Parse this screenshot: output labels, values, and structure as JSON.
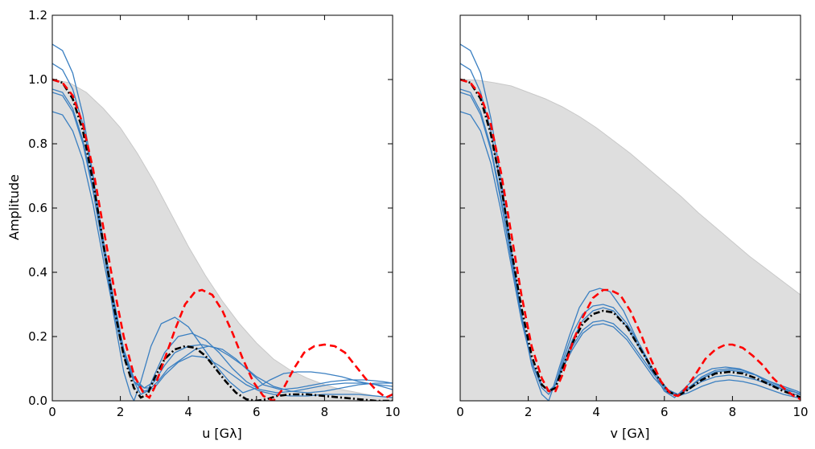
{
  "chart_data": [
    {
      "type": "line",
      "xlabel": "u [Gλ]",
      "ylabel": "Amplitude",
      "xlim": [
        0,
        10
      ],
      "ylim": [
        0,
        1.2
      ],
      "xticks": [
        "0",
        "2",
        "4",
        "6",
        "8",
        "10"
      ],
      "yticks": [
        "0.0",
        "0.2",
        "0.4",
        "0.6",
        "0.8",
        "1.0",
        "1.2"
      ],
      "grid": false,
      "envelope": {
        "x": [
          0,
          0.5,
          1,
          1.5,
          2,
          2.5,
          3,
          3.5,
          4,
          4.5,
          5,
          5.5,
          6,
          6.5,
          7,
          7.5,
          8,
          8.5,
          9,
          9.5,
          10
        ],
        "y": [
          1.0,
          0.99,
          0.96,
          0.91,
          0.85,
          0.77,
          0.68,
          0.58,
          0.48,
          0.39,
          0.31,
          0.24,
          0.18,
          0.13,
          0.095,
          0.07,
          0.05,
          0.035,
          0.025,
          0.015,
          0.01
        ]
      },
      "blue_curves": [
        {
          "x": [
            0,
            0.3,
            0.6,
            0.9,
            1.2,
            1.5,
            1.8,
            2.1,
            2.3,
            2.4,
            2.6,
            2.9,
            3.2,
            3.6,
            4.0,
            4.4,
            4.8,
            5.2,
            5.6,
            6.0,
            6.4,
            6.8,
            7.2,
            7.6,
            8.0,
            8.5,
            9.0,
            9.5,
            10
          ],
          "y": [
            1.11,
            1.09,
            1.02,
            0.89,
            0.7,
            0.48,
            0.27,
            0.09,
            0.02,
            0.0,
            0.06,
            0.17,
            0.24,
            0.26,
            0.23,
            0.17,
            0.11,
            0.06,
            0.025,
            0.04,
            0.065,
            0.085,
            0.09,
            0.09,
            0.085,
            0.075,
            0.06,
            0.05,
            0.035
          ]
        },
        {
          "x": [
            0,
            0.3,
            0.6,
            0.9,
            1.2,
            1.5,
            1.8,
            2.1,
            2.4,
            2.6,
            2.8,
            3.0,
            3.3,
            3.7,
            4.1,
            4.5,
            4.9,
            5.3,
            5.7,
            6.1,
            6.6,
            7.1,
            7.6,
            8.1,
            8.6,
            9.1,
            9.6,
            10
          ],
          "y": [
            1.05,
            1.03,
            0.97,
            0.86,
            0.69,
            0.5,
            0.32,
            0.16,
            0.06,
            0.02,
            0.03,
            0.08,
            0.15,
            0.2,
            0.21,
            0.19,
            0.15,
            0.1,
            0.06,
            0.035,
            0.025,
            0.03,
            0.04,
            0.05,
            0.055,
            0.055,
            0.05,
            0.045
          ]
        },
        {
          "x": [
            0,
            0.3,
            0.6,
            0.9,
            1.2,
            1.5,
            1.8,
            2.1,
            2.4,
            2.7,
            3.0,
            3.3,
            3.6,
            4.0,
            4.4,
            4.8,
            5.2,
            5.6,
            6.0,
            6.5,
            7.0,
            7.5,
            8.0,
            8.5,
            9.0,
            9.5,
            10
          ],
          "y": [
            0.97,
            0.96,
            0.91,
            0.81,
            0.66,
            0.48,
            0.31,
            0.16,
            0.07,
            0.04,
            0.06,
            0.11,
            0.15,
            0.17,
            0.175,
            0.165,
            0.14,
            0.11,
            0.075,
            0.045,
            0.03,
            0.025,
            0.03,
            0.04,
            0.05,
            0.055,
            0.055
          ]
        },
        {
          "x": [
            0,
            0.3,
            0.6,
            0.9,
            1.2,
            1.5,
            1.8,
            2.1,
            2.4,
            2.7,
            2.9,
            3.1,
            3.4,
            3.8,
            4.2,
            4.6,
            5.0,
            5.4,
            5.8,
            6.2,
            6.7,
            7.2,
            7.7,
            8.2,
            8.7,
            9.2,
            9.7,
            10
          ],
          "y": [
            0.96,
            0.95,
            0.9,
            0.8,
            0.65,
            0.47,
            0.3,
            0.15,
            0.06,
            0.04,
            0.04,
            0.06,
            0.1,
            0.13,
            0.16,
            0.17,
            0.16,
            0.13,
            0.09,
            0.05,
            0.035,
            0.04,
            0.05,
            0.06,
            0.065,
            0.065,
            0.06,
            0.055
          ]
        },
        {
          "x": [
            0,
            0.3,
            0.6,
            0.9,
            1.2,
            1.5,
            1.8,
            2.1,
            2.4,
            2.7,
            3.0,
            3.3,
            3.7,
            4.1,
            4.5,
            4.9,
            5.3,
            5.7,
            6.1,
            6.5,
            7.0,
            7.5,
            8.0,
            8.5,
            9.0,
            9.5,
            10
          ],
          "y": [
            0.9,
            0.89,
            0.84,
            0.75,
            0.61,
            0.44,
            0.28,
            0.14,
            0.06,
            0.03,
            0.04,
            0.08,
            0.12,
            0.14,
            0.135,
            0.11,
            0.08,
            0.05,
            0.03,
            0.02,
            0.015,
            0.015,
            0.02,
            0.02,
            0.02,
            0.015,
            0.01
          ]
        }
      ],
      "red_dashed": {
        "x": [
          0,
          0.3,
          0.6,
          0.9,
          1.2,
          1.5,
          1.8,
          2.1,
          2.4,
          2.7,
          2.85,
          3.0,
          3.3,
          3.6,
          3.9,
          4.2,
          4.4,
          4.7,
          5.0,
          5.3,
          5.6,
          5.9,
          6.2,
          6.5,
          6.8,
          7.1,
          7.4,
          7.7,
          8.0,
          8.3,
          8.6,
          8.9,
          9.2,
          9.5,
          9.8,
          10
        ],
        "y": [
          1.0,
          0.99,
          0.95,
          0.86,
          0.72,
          0.54,
          0.36,
          0.2,
          0.08,
          0.02,
          0.01,
          0.04,
          0.13,
          0.22,
          0.3,
          0.34,
          0.345,
          0.33,
          0.28,
          0.21,
          0.13,
          0.06,
          0.015,
          0.0,
          0.04,
          0.1,
          0.15,
          0.17,
          0.175,
          0.17,
          0.15,
          0.11,
          0.07,
          0.035,
          0.01,
          0.02
        ]
      },
      "black_dashdot": {
        "x": [
          0,
          0.3,
          0.6,
          0.9,
          1.2,
          1.5,
          1.8,
          2.1,
          2.4,
          2.6,
          2.8,
          3.0,
          3.3,
          3.6,
          3.9,
          4.2,
          4.5,
          4.8,
          5.1,
          5.4,
          5.7,
          6.0,
          6.3,
          6.6,
          7.0,
          7.5,
          8.0,
          8.5,
          9.0,
          9.5,
          10
        ],
        "y": [
          1.0,
          0.99,
          0.94,
          0.84,
          0.68,
          0.49,
          0.3,
          0.14,
          0.04,
          0.01,
          0.02,
          0.07,
          0.13,
          0.16,
          0.17,
          0.165,
          0.14,
          0.1,
          0.06,
          0.025,
          0.005,
          0.0,
          0.005,
          0.015,
          0.02,
          0.02,
          0.015,
          0.01,
          0.005,
          0.0,
          0.0
        ]
      }
    },
    {
      "type": "line",
      "xlabel": "v [Gλ]",
      "ylabel": "",
      "xlim": [
        0,
        10
      ],
      "ylim": [
        0,
        1.2
      ],
      "xticks": [
        "0",
        "2",
        "4",
        "6",
        "8",
        "10"
      ],
      "yticks": [],
      "grid": false,
      "envelope": {
        "x": [
          0,
          0.5,
          1,
          1.5,
          2,
          2.5,
          3,
          3.5,
          4,
          4.5,
          5,
          5.5,
          6,
          6.5,
          7,
          7.5,
          8,
          8.5,
          9,
          9.5,
          10
        ],
        "y": [
          1.0,
          0.998,
          0.99,
          0.98,
          0.96,
          0.94,
          0.915,
          0.885,
          0.85,
          0.81,
          0.77,
          0.725,
          0.68,
          0.635,
          0.585,
          0.54,
          0.495,
          0.45,
          0.41,
          0.37,
          0.33
        ]
      },
      "blue_curves": [
        {
          "x": [
            0,
            0.3,
            0.6,
            0.9,
            1.2,
            1.5,
            1.8,
            2.1,
            2.4,
            2.6,
            2.7,
            2.9,
            3.2,
            3.5,
            3.8,
            4.1,
            4.4,
            4.8,
            5.2,
            5.6,
            6.0,
            6.3,
            6.6,
            7.0,
            7.4,
            7.8,
            8.2,
            8.6,
            9.0,
            9.4,
            9.8,
            10
          ],
          "y": [
            1.11,
            1.09,
            1.02,
            0.88,
            0.69,
            0.47,
            0.27,
            0.11,
            0.02,
            0.0,
            0.03,
            0.1,
            0.2,
            0.29,
            0.34,
            0.35,
            0.34,
            0.28,
            0.19,
            0.1,
            0.03,
            0.01,
            0.04,
            0.08,
            0.1,
            0.105,
            0.1,
            0.085,
            0.06,
            0.04,
            0.02,
            0.02
          ]
        },
        {
          "x": [
            0,
            0.3,
            0.6,
            0.9,
            1.2,
            1.5,
            1.8,
            2.1,
            2.4,
            2.6,
            2.8,
            3.0,
            3.3,
            3.6,
            3.9,
            4.2,
            4.5,
            4.9,
            5.3,
            5.7,
            6.1,
            6.4,
            6.7,
            7.1,
            7.5,
            7.9,
            8.3,
            8.7,
            9.1,
            9.5,
            9.9,
            10
          ],
          "y": [
            1.05,
            1.03,
            0.96,
            0.84,
            0.66,
            0.46,
            0.27,
            0.12,
            0.04,
            0.02,
            0.05,
            0.12,
            0.21,
            0.27,
            0.295,
            0.3,
            0.29,
            0.24,
            0.17,
            0.09,
            0.03,
            0.015,
            0.04,
            0.075,
            0.095,
            0.1,
            0.095,
            0.08,
            0.06,
            0.04,
            0.025,
            0.02
          ]
        },
        {
          "x": [
            0,
            0.3,
            0.6,
            0.9,
            1.2,
            1.5,
            1.8,
            2.1,
            2.4,
            2.6,
            2.8,
            3.0,
            3.3,
            3.6,
            3.9,
            4.2,
            4.5,
            4.9,
            5.3,
            5.7,
            6.1,
            6.4,
            6.7,
            7.1,
            7.5,
            7.9,
            8.3,
            8.7,
            9.1,
            9.5,
            9.9,
            10
          ],
          "y": [
            0.97,
            0.96,
            0.9,
            0.79,
            0.63,
            0.44,
            0.26,
            0.12,
            0.05,
            0.03,
            0.05,
            0.11,
            0.19,
            0.25,
            0.28,
            0.29,
            0.28,
            0.23,
            0.16,
            0.09,
            0.035,
            0.02,
            0.04,
            0.07,
            0.09,
            0.095,
            0.09,
            0.08,
            0.06,
            0.045,
            0.03,
            0.025
          ]
        },
        {
          "x": [
            0,
            0.3,
            0.6,
            0.9,
            1.2,
            1.5,
            1.8,
            2.1,
            2.4,
            2.6,
            2.8,
            3.0,
            3.3,
            3.6,
            3.9,
            4.2,
            4.5,
            4.9,
            5.3,
            5.7,
            6.1,
            6.4,
            6.7,
            7.1,
            7.5,
            7.9,
            8.3,
            8.7,
            9.1,
            9.5,
            9.9,
            10
          ],
          "y": [
            0.96,
            0.95,
            0.89,
            0.78,
            0.62,
            0.44,
            0.26,
            0.12,
            0.05,
            0.03,
            0.05,
            0.1,
            0.17,
            0.22,
            0.245,
            0.25,
            0.24,
            0.2,
            0.14,
            0.08,
            0.03,
            0.02,
            0.035,
            0.06,
            0.075,
            0.08,
            0.075,
            0.065,
            0.05,
            0.035,
            0.025,
            0.02
          ]
        },
        {
          "x": [
            0,
            0.3,
            0.6,
            0.9,
            1.2,
            1.5,
            1.8,
            2.1,
            2.4,
            2.6,
            2.8,
            3.0,
            3.3,
            3.6,
            3.9,
            4.2,
            4.5,
            4.9,
            5.3,
            5.7,
            6.1,
            6.4,
            6.7,
            7.1,
            7.5,
            7.9,
            8.3,
            8.7,
            9.1,
            9.5,
            9.9,
            10
          ],
          "y": [
            0.9,
            0.89,
            0.84,
            0.74,
            0.59,
            0.42,
            0.25,
            0.12,
            0.05,
            0.03,
            0.05,
            0.1,
            0.16,
            0.21,
            0.235,
            0.24,
            0.23,
            0.19,
            0.13,
            0.07,
            0.025,
            0.015,
            0.025,
            0.045,
            0.06,
            0.065,
            0.06,
            0.05,
            0.035,
            0.02,
            0.01,
            0.01
          ]
        }
      ],
      "red_dashed": {
        "x": [
          0,
          0.3,
          0.6,
          0.9,
          1.2,
          1.5,
          1.8,
          2.1,
          2.4,
          2.6,
          2.8,
          3.0,
          3.3,
          3.6,
          3.9,
          4.2,
          4.4,
          4.7,
          5.0,
          5.3,
          5.6,
          5.9,
          6.2,
          6.4,
          6.6,
          6.9,
          7.2,
          7.5,
          7.8,
          8.0,
          8.3,
          8.6,
          8.9,
          9.2,
          9.5,
          9.8,
          10
        ],
        "y": [
          1.0,
          0.99,
          0.95,
          0.86,
          0.71,
          0.52,
          0.33,
          0.17,
          0.07,
          0.03,
          0.03,
          0.08,
          0.18,
          0.26,
          0.32,
          0.345,
          0.345,
          0.33,
          0.28,
          0.21,
          0.13,
          0.06,
          0.02,
          0.015,
          0.035,
          0.08,
          0.13,
          0.16,
          0.175,
          0.175,
          0.165,
          0.14,
          0.11,
          0.07,
          0.04,
          0.015,
          0.005
        ]
      },
      "black_dashdot": {
        "x": [
          0,
          0.3,
          0.6,
          0.9,
          1.2,
          1.5,
          1.8,
          2.1,
          2.4,
          2.6,
          2.8,
          3.0,
          3.3,
          3.6,
          3.9,
          4.2,
          4.5,
          4.9,
          5.3,
          5.7,
          6.1,
          6.4,
          6.7,
          7.1,
          7.5,
          7.9,
          8.3,
          8.7,
          9.1,
          9.5,
          9.9,
          10
        ],
        "y": [
          1.0,
          0.99,
          0.94,
          0.83,
          0.67,
          0.47,
          0.29,
          0.14,
          0.05,
          0.03,
          0.04,
          0.1,
          0.18,
          0.24,
          0.27,
          0.28,
          0.275,
          0.23,
          0.16,
          0.09,
          0.03,
          0.015,
          0.035,
          0.065,
          0.085,
          0.09,
          0.085,
          0.07,
          0.05,
          0.03,
          0.015,
          0.01
        ]
      }
    }
  ],
  "colors": {
    "envelope_fill": "#dedede",
    "envelope_edge": "#c8c8c8",
    "blue": "#3a7fc1",
    "red": "#ff0000",
    "black": "#000000"
  }
}
